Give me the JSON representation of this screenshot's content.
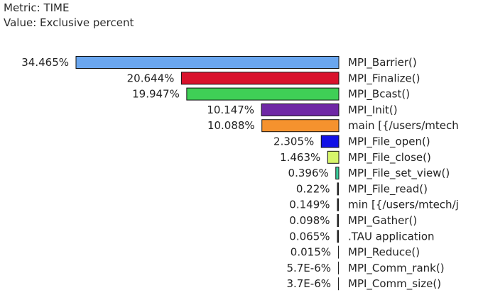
{
  "header": {
    "metric": "Metric: TIME",
    "value": "Value: Exclusive percent"
  },
  "chart_data": {
    "type": "bar",
    "orientation": "horizontal",
    "grid": false,
    "categories": [
      "MPI_Barrier()",
      "MPI_Finalize()",
      "MPI_Bcast()",
      "MPI_Init()",
      "main [{/users/mtech",
      "MPI_File_open()",
      "MPI_File_close()",
      "MPI_File_set_view()",
      "MPI_File_read()",
      "min [{/users/mtech/j",
      "MPI_Gather()",
      ".TAU application",
      "MPI_Reduce()",
      "MPI_Comm_rank()",
      "MPI_Comm_size()"
    ],
    "values": [
      34.465,
      20.644,
      19.947,
      10.147,
      10.088,
      2.305,
      1.463,
      0.396,
      0.22,
      0.149,
      0.098,
      0.065,
      0.015,
      5.7e-06,
      3.7e-06
    ],
    "value_labels": [
      "34.465%",
      "20.644%",
      "19.947%",
      "10.147%",
      "10.088%",
      "2.305%",
      "1.463%",
      "0.396%",
      "0.22%",
      "0.149%",
      "0.098%",
      "0.065%",
      "0.015%",
      "5.7E-6%",
      "3.7E-6%"
    ],
    "colors": [
      "#6aa6ef",
      "#d9122c",
      "#3fcf56",
      "#6f27a5",
      "#f5922e",
      "#1212e6",
      "#d6f56b",
      "#3bcf9e",
      "#222222",
      "#222222",
      "#222222",
      "#222222",
      "#222222",
      "#222222",
      "#222222"
    ]
  }
}
